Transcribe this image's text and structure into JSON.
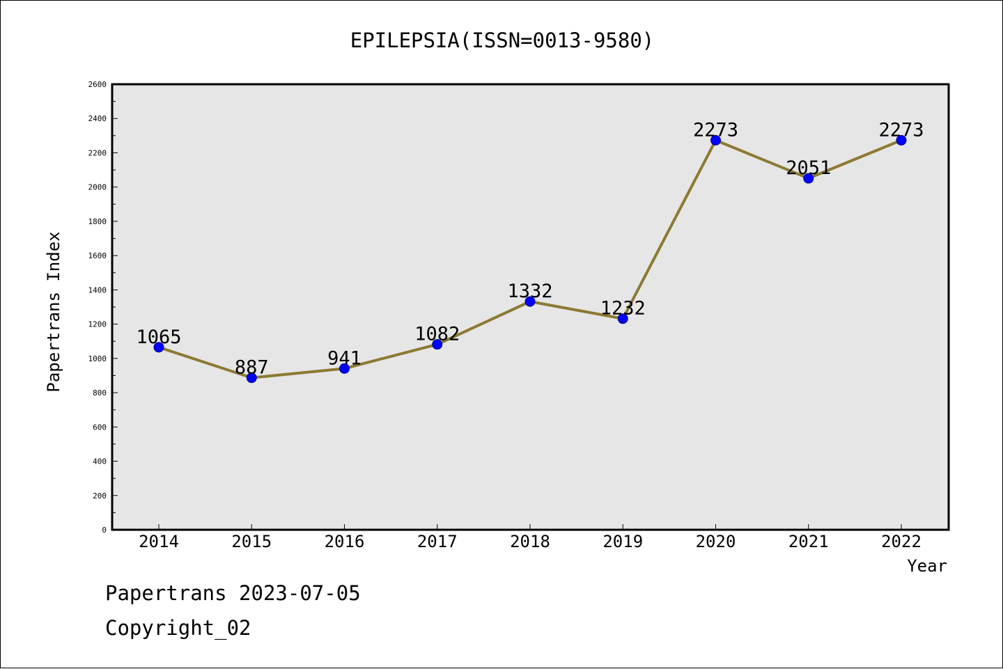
{
  "chart_data": {
    "type": "line",
    "title": "EPILEPSIA(ISSN=0013-9580)",
    "xlabel": "Year",
    "ylabel": "Papertrans Index",
    "categories": [
      "2014",
      "2015",
      "2016",
      "2017",
      "2018",
      "2019",
      "2020",
      "2021",
      "2022"
    ],
    "values": [
      1065,
      887,
      941,
      1082,
      1332,
      1232,
      2273,
      2051,
      2273
    ],
    "data_labels": [
      "1065",
      "887",
      "941",
      "1082",
      "1332",
      "1232",
      "2273",
      "2051",
      "2273"
    ],
    "ylim": [
      0,
      2600
    ],
    "yticks": [
      "0",
      "200",
      "400",
      "600",
      "800",
      "1000",
      "1200",
      "1400",
      "1600",
      "1800",
      "2000",
      "2200",
      "2400",
      "2600"
    ],
    "grid": false,
    "line_color": "#8c7a32",
    "marker_color": "#0000ff",
    "plot_background": "#e6e6e6"
  },
  "footer": {
    "date_line": "Papertrans 2023-07-05",
    "copyright": "Copyright_02"
  }
}
